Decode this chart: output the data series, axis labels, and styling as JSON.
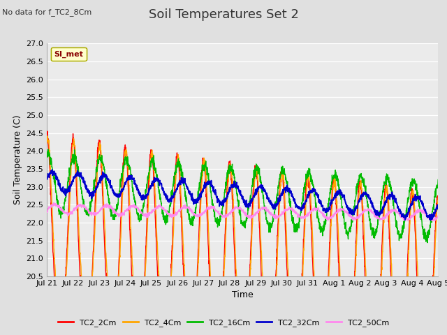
{
  "title": "Soil Temperatures Set 2",
  "subtitle": "No data for f_TC2_8Cm",
  "ylabel": "Soil Temperature (C)",
  "xlabel": "Time",
  "legend_label": "SI_met",
  "ylim": [
    20.5,
    27.0
  ],
  "yticks": [
    20.5,
    21.0,
    21.5,
    22.0,
    22.5,
    23.0,
    23.5,
    24.0,
    24.5,
    25.0,
    25.5,
    26.0,
    26.5,
    27.0
  ],
  "series": {
    "TC2_2Cm": {
      "color": "#FF0000",
      "lw": 1.0
    },
    "TC2_4Cm": {
      "color": "#FFA500",
      "lw": 1.0
    },
    "TC2_16Cm": {
      "color": "#00BB00",
      "lw": 1.0
    },
    "TC2_32Cm": {
      "color": "#0000CC",
      "lw": 1.3
    },
    "TC2_50Cm": {
      "color": "#FF88EE",
      "lw": 1.0
    }
  },
  "bg_color": "#E0E0E0",
  "plot_bg": "#EBEBEB",
  "grid_color": "#FFFFFF",
  "xtick_labels": [
    "Jul 21",
    "Jul 22",
    "Jul 23",
    "Jul 24",
    "Jul 25",
    "Jul 26",
    "Jul 27",
    "Jul 28",
    "Jul 29",
    "Jul 30",
    "Jul 31",
    "Aug 1",
    "Aug 2",
    "Aug 3",
    "Aug 4",
    "Aug 5"
  ],
  "title_fontsize": 13,
  "label_fontsize": 9,
  "tick_fontsize": 8
}
